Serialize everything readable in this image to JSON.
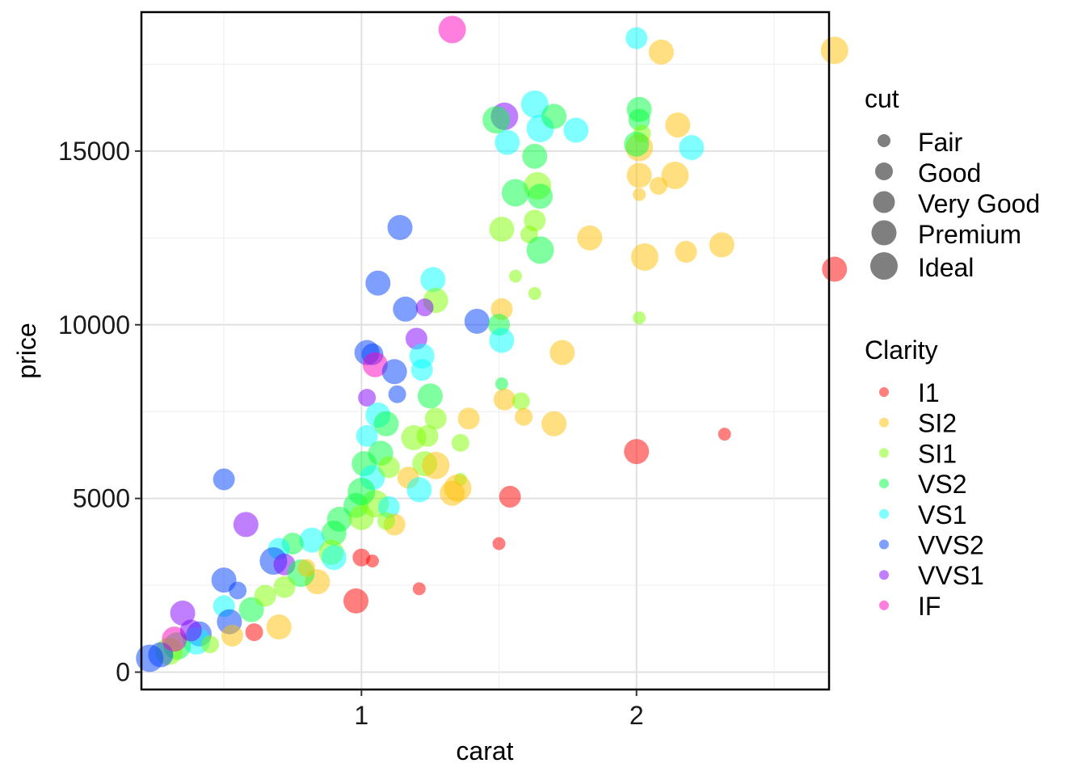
{
  "chart_data": {
    "type": "scatter",
    "xlabel": "carat",
    "ylabel": "price",
    "xlim": [
      0.2,
      2.7
    ],
    "ylim": [
      -500,
      19000
    ],
    "x_ticks": [
      1,
      2
    ],
    "y_ticks": [
      0,
      5000,
      10000,
      15000
    ],
    "x_tick_labels": [
      "1",
      "2"
    ],
    "y_tick_labels": [
      "0",
      "5000",
      "10000",
      "15000"
    ],
    "grid": true,
    "legend_position": "right",
    "size_legend": {
      "title": "cut",
      "items": [
        "Fair",
        "Good",
        "Very Good",
        "Premium",
        "Ideal"
      ]
    },
    "color_legend": {
      "title": "Clarity",
      "items": [
        "I1",
        "SI2",
        "SI1",
        "VS2",
        "VS1",
        "VVS2",
        "VVS1",
        "IF"
      ]
    },
    "colors": {
      "I1": "#ff0000",
      "SI2": "#ffbf00",
      "SI1": "#80ff00",
      "VS2": "#00ff40",
      "VS1": "#00ffff",
      "VVS2": "#0040ff",
      "VVS1": "#8000ff",
      "IF": "#ff00bf"
    },
    "points": [
      {
        "carat": 1.33,
        "price": 18500,
        "cut": "Ideal",
        "clarity": "IF"
      },
      {
        "carat": 2.0,
        "price": 18250,
        "cut": "Very Good",
        "clarity": "VS1"
      },
      {
        "carat": 2.09,
        "price": 17850,
        "cut": "Premium",
        "clarity": "SI2"
      },
      {
        "carat": 2.72,
        "price": 17900,
        "cut": "Ideal",
        "clarity": "SI2"
      },
      {
        "carat": 1.63,
        "price": 16350,
        "cut": "Ideal",
        "clarity": "VS1"
      },
      {
        "carat": 1.52,
        "price": 16000,
        "cut": "Ideal",
        "clarity": "VVS1"
      },
      {
        "carat": 1.49,
        "price": 15900,
        "cut": "Ideal",
        "clarity": "VS2"
      },
      {
        "carat": 1.65,
        "price": 15650,
        "cut": "Ideal",
        "clarity": "VS1"
      },
      {
        "carat": 1.7,
        "price": 16000,
        "cut": "Premium",
        "clarity": "VS2"
      },
      {
        "carat": 1.78,
        "price": 15600,
        "cut": "Premium",
        "clarity": "VS1"
      },
      {
        "carat": 1.53,
        "price": 15250,
        "cut": "Premium",
        "clarity": "VS1"
      },
      {
        "carat": 1.63,
        "price": 14850,
        "cut": "Premium",
        "clarity": "VS2"
      },
      {
        "carat": 2.01,
        "price": 16200,
        "cut": "Premium",
        "clarity": "VS2"
      },
      {
        "carat": 2.01,
        "price": 15900,
        "cut": "Very Good",
        "clarity": "VS2"
      },
      {
        "carat": 2.02,
        "price": 15500,
        "cut": "Good",
        "clarity": "SI1"
      },
      {
        "carat": 2.01,
        "price": 15100,
        "cut": "Ideal",
        "clarity": "SI2"
      },
      {
        "carat": 2.0,
        "price": 15200,
        "cut": "Premium",
        "clarity": "VS2"
      },
      {
        "carat": 2.15,
        "price": 15750,
        "cut": "Premium",
        "clarity": "SI2"
      },
      {
        "carat": 2.2,
        "price": 15100,
        "cut": "Premium",
        "clarity": "VS1"
      },
      {
        "carat": 2.01,
        "price": 14300,
        "cut": "Premium",
        "clarity": "SI2"
      },
      {
        "carat": 2.08,
        "price": 14000,
        "cut": "Good",
        "clarity": "SI2"
      },
      {
        "carat": 2.14,
        "price": 14300,
        "cut": "Ideal",
        "clarity": "SI2"
      },
      {
        "carat": 2.01,
        "price": 13750,
        "cut": "Fair",
        "clarity": "SI2"
      },
      {
        "carat": 1.64,
        "price": 14000,
        "cut": "Ideal",
        "clarity": "SI1"
      },
      {
        "carat": 1.56,
        "price": 13800,
        "cut": "Ideal",
        "clarity": "VS2"
      },
      {
        "carat": 1.65,
        "price": 13700,
        "cut": "Premium",
        "clarity": "VS2"
      },
      {
        "carat": 1.63,
        "price": 13000,
        "cut": "Very Good",
        "clarity": "SI1"
      },
      {
        "carat": 1.51,
        "price": 12750,
        "cut": "Premium",
        "clarity": "SI1"
      },
      {
        "carat": 1.61,
        "price": 12600,
        "cut": "Good",
        "clarity": "SI1"
      },
      {
        "carat": 1.65,
        "price": 12150,
        "cut": "Ideal",
        "clarity": "VS2"
      },
      {
        "carat": 1.83,
        "price": 12500,
        "cut": "Premium",
        "clarity": "SI2"
      },
      {
        "carat": 2.03,
        "price": 11950,
        "cut": "Ideal",
        "clarity": "SI2"
      },
      {
        "carat": 2.18,
        "price": 12100,
        "cut": "Very Good",
        "clarity": "SI2"
      },
      {
        "carat": 2.31,
        "price": 12300,
        "cut": "Premium",
        "clarity": "SI2"
      },
      {
        "carat": 2.72,
        "price": 11600,
        "cut": "Premium",
        "clarity": "I1"
      },
      {
        "carat": 1.14,
        "price": 12800,
        "cut": "Premium",
        "clarity": "VVS2"
      },
      {
        "carat": 1.06,
        "price": 11200,
        "cut": "Premium",
        "clarity": "VVS2"
      },
      {
        "carat": 1.26,
        "price": 11300,
        "cut": "Premium",
        "clarity": "VS1"
      },
      {
        "carat": 1.27,
        "price": 10700,
        "cut": "Premium",
        "clarity": "SI1"
      },
      {
        "carat": 1.16,
        "price": 10450,
        "cut": "Premium",
        "clarity": "VVS2"
      },
      {
        "carat": 1.23,
        "price": 10500,
        "cut": "Good",
        "clarity": "VVS1"
      },
      {
        "carat": 1.42,
        "price": 10100,
        "cut": "Premium",
        "clarity": "VVS2"
      },
      {
        "carat": 1.51,
        "price": 10450,
        "cut": "Very Good",
        "clarity": "SI2"
      },
      {
        "carat": 1.5,
        "price": 10000,
        "cut": "Very Good",
        "clarity": "VS2"
      },
      {
        "carat": 1.51,
        "price": 9550,
        "cut": "Premium",
        "clarity": "VS1"
      },
      {
        "carat": 1.56,
        "price": 11400,
        "cut": "Fair",
        "clarity": "SI1"
      },
      {
        "carat": 1.63,
        "price": 10900,
        "cut": "Fair",
        "clarity": "SI1"
      },
      {
        "carat": 2.01,
        "price": 10200,
        "cut": "Fair",
        "clarity": "SI1"
      },
      {
        "carat": 1.73,
        "price": 9200,
        "cut": "Premium",
        "clarity": "SI2"
      },
      {
        "carat": 1.2,
        "price": 9600,
        "cut": "Very Good",
        "clarity": "VVS1"
      },
      {
        "carat": 1.02,
        "price": 9200,
        "cut": "Premium",
        "clarity": "VVS2"
      },
      {
        "carat": 1.04,
        "price": 9150,
        "cut": "Very Good",
        "clarity": "VVS2"
      },
      {
        "carat": 1.05,
        "price": 8850,
        "cut": "Premium",
        "clarity": "IF"
      },
      {
        "carat": 1.22,
        "price": 9100,
        "cut": "Premium",
        "clarity": "VS1"
      },
      {
        "carat": 1.12,
        "price": 8650,
        "cut": "Premium",
        "clarity": "VVS2"
      },
      {
        "carat": 1.22,
        "price": 8700,
        "cut": "Very Good",
        "clarity": "VS1"
      },
      {
        "carat": 1.13,
        "price": 8000,
        "cut": "Good",
        "clarity": "VVS2"
      },
      {
        "carat": 1.02,
        "price": 7900,
        "cut": "Good",
        "clarity": "VVS1"
      },
      {
        "carat": 1.25,
        "price": 7950,
        "cut": "Premium",
        "clarity": "VS2"
      },
      {
        "carat": 1.51,
        "price": 8300,
        "cut": "Fair",
        "clarity": "VS2"
      },
      {
        "carat": 1.52,
        "price": 7850,
        "cut": "Very Good",
        "clarity": "SI2"
      },
      {
        "carat": 1.58,
        "price": 7800,
        "cut": "Good",
        "clarity": "SI1"
      },
      {
        "carat": 1.39,
        "price": 7300,
        "cut": "Very Good",
        "clarity": "SI2"
      },
      {
        "carat": 1.59,
        "price": 7350,
        "cut": "Good",
        "clarity": "SI2"
      },
      {
        "carat": 1.7,
        "price": 7150,
        "cut": "Premium",
        "clarity": "SI2"
      },
      {
        "carat": 1.06,
        "price": 7400,
        "cut": "Premium",
        "clarity": "VS1"
      },
      {
        "carat": 1.09,
        "price": 7150,
        "cut": "Premium",
        "clarity": "VS2"
      },
      {
        "carat": 1.27,
        "price": 7300,
        "cut": "Very Good",
        "clarity": "SI1"
      },
      {
        "carat": 1.02,
        "price": 6800,
        "cut": "Very Good",
        "clarity": "VS1"
      },
      {
        "carat": 1.19,
        "price": 6750,
        "cut": "Premium",
        "clarity": "SI1"
      },
      {
        "carat": 1.24,
        "price": 6800,
        "cut": "Very Good",
        "clarity": "SI1"
      },
      {
        "carat": 1.36,
        "price": 6600,
        "cut": "Good",
        "clarity": "SI1"
      },
      {
        "carat": 2.0,
        "price": 6350,
        "cut": "Premium",
        "clarity": "I1"
      },
      {
        "carat": 2.32,
        "price": 6850,
        "cut": "Fair",
        "clarity": "I1"
      },
      {
        "carat": 1.01,
        "price": 6000,
        "cut": "Premium",
        "clarity": "VS2"
      },
      {
        "carat": 1.04,
        "price": 5600,
        "cut": "Premium",
        "clarity": "VS1"
      },
      {
        "carat": 1.23,
        "price": 6000,
        "cut": "Premium",
        "clarity": "SI1"
      },
      {
        "carat": 1.27,
        "price": 5950,
        "cut": "Ideal",
        "clarity": "SI2"
      },
      {
        "carat": 1.17,
        "price": 5600,
        "cut": "Very Good",
        "clarity": "SI2"
      },
      {
        "carat": 1.36,
        "price": 5550,
        "cut": "Fair",
        "clarity": "SI1"
      },
      {
        "carat": 1.21,
        "price": 5250,
        "cut": "Premium",
        "clarity": "VS1"
      },
      {
        "carat": 1.33,
        "price": 5150,
        "cut": "Premium",
        "clarity": "SI2"
      },
      {
        "carat": 1.35,
        "price": 5300,
        "cut": "Ideal",
        "clarity": "SI2"
      },
      {
        "carat": 1.54,
        "price": 5050,
        "cut": "Very Good",
        "clarity": "I1"
      },
      {
        "carat": 0.5,
        "price": 5550,
        "cut": "Very Good",
        "clarity": "VVS2"
      },
      {
        "carat": 0.58,
        "price": 4250,
        "cut": "Premium",
        "clarity": "VVS1"
      },
      {
        "carat": 0.98,
        "price": 4800,
        "cut": "Premium",
        "clarity": "VS2"
      },
      {
        "carat": 1.05,
        "price": 4850,
        "cut": "Ideal",
        "clarity": "SI1"
      },
      {
        "carat": 1.1,
        "price": 4750,
        "cut": "Very Good",
        "clarity": "VS1"
      },
      {
        "carat": 0.92,
        "price": 4400,
        "cut": "Premium",
        "clarity": "VS2"
      },
      {
        "carat": 1.0,
        "price": 4450,
        "cut": "Premium",
        "clarity": "SI1"
      },
      {
        "carat": 1.12,
        "price": 4250,
        "cut": "Very Good",
        "clarity": "SI2"
      },
      {
        "carat": 1.09,
        "price": 4350,
        "cut": "Good",
        "clarity": "SI1"
      },
      {
        "carat": 0.9,
        "price": 4000,
        "cut": "Premium",
        "clarity": "VS2"
      },
      {
        "carat": 0.82,
        "price": 3800,
        "cut": "Premium",
        "clarity": "VS1"
      },
      {
        "carat": 0.75,
        "price": 3700,
        "cut": "Very Good",
        "clarity": "VS2"
      },
      {
        "carat": 0.7,
        "price": 3550,
        "cut": "Very Good",
        "clarity": "VS1"
      },
      {
        "carat": 0.68,
        "price": 3200,
        "cut": "Ideal",
        "clarity": "VVS2"
      },
      {
        "carat": 0.72,
        "price": 3100,
        "cut": "Very Good",
        "clarity": "VVS1"
      },
      {
        "carat": 0.89,
        "price": 3450,
        "cut": "Premium",
        "clarity": "SI1"
      },
      {
        "carat": 1.0,
        "price": 3300,
        "cut": "Good",
        "clarity": "I1"
      },
      {
        "carat": 1.04,
        "price": 3200,
        "cut": "Fair",
        "clarity": "I1"
      },
      {
        "carat": 1.5,
        "price": 3700,
        "cut": "Fair",
        "clarity": "I1"
      },
      {
        "carat": 0.84,
        "price": 2600,
        "cut": "Premium",
        "clarity": "SI2"
      },
      {
        "carat": 0.78,
        "price": 2850,
        "cut": "Ideal",
        "clarity": "VS2"
      },
      {
        "carat": 0.72,
        "price": 2450,
        "cut": "Very Good",
        "clarity": "SI1"
      },
      {
        "carat": 0.5,
        "price": 2650,
        "cut": "Premium",
        "clarity": "VVS2"
      },
      {
        "carat": 0.55,
        "price": 2350,
        "cut": "Good",
        "clarity": "VVS2"
      },
      {
        "carat": 0.98,
        "price": 2050,
        "cut": "Premium",
        "clarity": "I1"
      },
      {
        "carat": 1.21,
        "price": 2400,
        "cut": "Fair",
        "clarity": "I1"
      },
      {
        "carat": 0.35,
        "price": 1700,
        "cut": "Premium",
        "clarity": "VVS1"
      },
      {
        "carat": 0.5,
        "price": 1900,
        "cut": "Very Good",
        "clarity": "VS1"
      },
      {
        "carat": 0.52,
        "price": 1450,
        "cut": "Premium",
        "clarity": "VVS2"
      },
      {
        "carat": 0.7,
        "price": 1300,
        "cut": "Premium",
        "clarity": "SI2"
      },
      {
        "carat": 0.61,
        "price": 1150,
        "cut": "Good",
        "clarity": "I1"
      },
      {
        "carat": 0.53,
        "price": 1050,
        "cut": "Very Good",
        "clarity": "SI2"
      },
      {
        "carat": 0.41,
        "price": 1100,
        "cut": "Premium",
        "clarity": "VVS2"
      },
      {
        "carat": 0.4,
        "price": 900,
        "cut": "Ideal",
        "clarity": "VS1"
      },
      {
        "carat": 0.33,
        "price": 750,
        "cut": "Ideal",
        "clarity": "VS2"
      },
      {
        "carat": 0.3,
        "price": 600,
        "cut": "Ideal",
        "clarity": "SI1"
      },
      {
        "carat": 0.27,
        "price": 500,
        "cut": "Premium",
        "clarity": "VVS2"
      },
      {
        "carat": 0.23,
        "price": 400,
        "cut": "Ideal",
        "clarity": "VVS2"
      },
      {
        "carat": 0.32,
        "price": 950,
        "cut": "Premium",
        "clarity": "IF"
      },
      {
        "carat": 0.45,
        "price": 800,
        "cut": "Good",
        "clarity": "SI1"
      },
      {
        "carat": 0.38,
        "price": 1200,
        "cut": "Very Good",
        "clarity": "VVS1"
      },
      {
        "carat": 0.6,
        "price": 1800,
        "cut": "Premium",
        "clarity": "VS2"
      },
      {
        "carat": 0.65,
        "price": 2200,
        "cut": "Very Good",
        "clarity": "SI1"
      },
      {
        "carat": 0.8,
        "price": 3000,
        "cut": "Good",
        "clarity": "SI2"
      },
      {
        "carat": 0.9,
        "price": 3300,
        "cut": "Premium",
        "clarity": "VS1"
      },
      {
        "carat": 1.0,
        "price": 5200,
        "cut": "Ideal",
        "clarity": "VS2"
      },
      {
        "carat": 1.07,
        "price": 6300,
        "cut": "Premium",
        "clarity": "VS2"
      },
      {
        "carat": 1.1,
        "price": 5900,
        "cut": "Very Good",
        "clarity": "SI1"
      }
    ]
  }
}
